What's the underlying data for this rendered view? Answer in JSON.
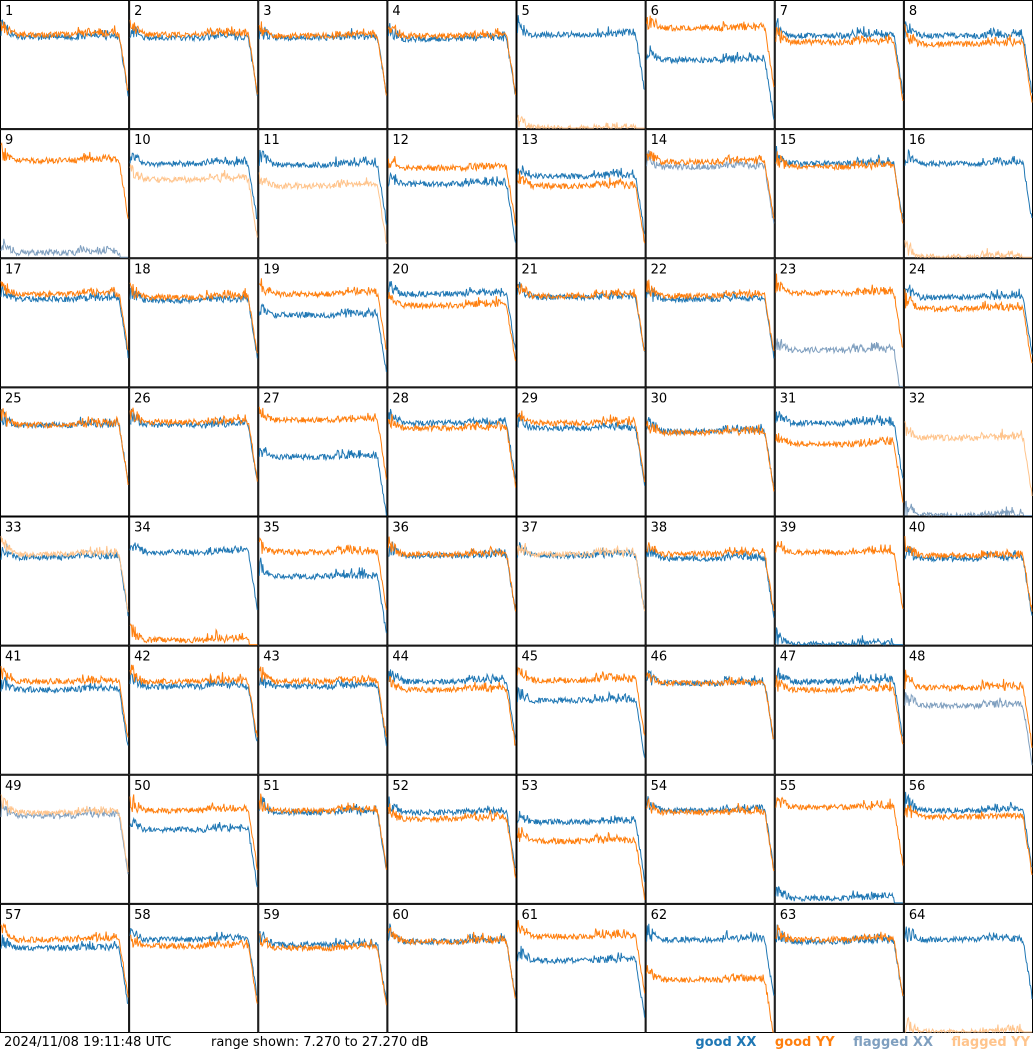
{
  "footer": {
    "timestamp": "2024/11/08 19:11:48 UTC",
    "range_text": "range shown: 7.270 to 27.270 dB"
  },
  "legend": [
    {
      "label": "good XX",
      "color": "#1f77b4"
    },
    {
      "label": "good YY",
      "color": "#ff7f0e"
    },
    {
      "label": "flagged XX",
      "color": "#7f9fbf"
    },
    {
      "label": "flagged YY",
      "color": "#ffc48c"
    }
  ],
  "chart_data": {
    "type": "line",
    "title": "",
    "xlabel": "",
    "ylabel": "",
    "ylim": [
      7.27,
      27.27
    ],
    "grid": false,
    "legend_position": "bottom-right",
    "panel_layout": {
      "rows": 8,
      "cols": 8
    },
    "colors": {
      "good_xx": "#1f77b4",
      "good_yy": "#ff7f0e",
      "flagged_xx": "#7f9fbf",
      "flagged_yy": "#ffc48c"
    },
    "series_names": [
      "good XX",
      "good YY",
      "flagged XX",
      "flagged YY"
    ],
    "panels": [
      {
        "label": "1",
        "xx": "good",
        "yy": "good",
        "xx_level": 21.6,
        "yy_level": 22.0
      },
      {
        "label": "2",
        "xx": "good",
        "yy": "good",
        "xx_level": 21.5,
        "yy_level": 22.0
      },
      {
        "label": "3",
        "xx": "good",
        "yy": "good",
        "xx_level": 21.5,
        "yy_level": 21.8
      },
      {
        "label": "4",
        "xx": "good",
        "yy": "good",
        "xx_level": 21.3,
        "yy_level": 21.8
      },
      {
        "label": "5",
        "xx": "good",
        "yy": "flagged",
        "xx_level": 22.0,
        "yy_level": 7.3
      },
      {
        "label": "6",
        "xx": "good",
        "yy": "good",
        "xx_level": 18.0,
        "yy_level": 23.0
      },
      {
        "label": "7",
        "xx": "good",
        "yy": "good",
        "xx_level": 21.8,
        "yy_level": 20.8
      },
      {
        "label": "8",
        "xx": "good",
        "yy": "good",
        "xx_level": 21.8,
        "yy_level": 20.5
      },
      {
        "label": "9",
        "xx": "flagged",
        "yy": "good",
        "xx_level": 8.0,
        "yy_level": 22.5
      },
      {
        "label": "10",
        "xx": "good",
        "yy": "flagged",
        "xx_level": 22.0,
        "yy_level": 19.5
      },
      {
        "label": "11",
        "xx": "good",
        "yy": "flagged",
        "xx_level": 21.8,
        "yy_level": 18.5
      },
      {
        "label": "12",
        "xx": "good",
        "yy": "good",
        "xx_level": 18.8,
        "yy_level": 21.3
      },
      {
        "label": "13",
        "xx": "good",
        "yy": "good",
        "xx_level": 20.0,
        "yy_level": 18.5
      },
      {
        "label": "14",
        "xx": "flagged",
        "yy": "good",
        "xx_level": 21.5,
        "yy_level": 22.3
      },
      {
        "label": "15",
        "xx": "good",
        "yy": "good",
        "xx_level": 22.0,
        "yy_level": 21.5
      },
      {
        "label": "16",
        "xx": "good",
        "yy": "flagged",
        "xx_level": 22.0,
        "yy_level": 7.3
      },
      {
        "label": "17",
        "xx": "good",
        "yy": "good",
        "xx_level": 21.0,
        "yy_level": 21.8
      },
      {
        "label": "18",
        "xx": "good",
        "yy": "good",
        "xx_level": 20.8,
        "yy_level": 21.3
      },
      {
        "label": "19",
        "xx": "good",
        "yy": "good",
        "xx_level": 18.5,
        "yy_level": 21.8
      },
      {
        "label": "20",
        "xx": "good",
        "yy": "good",
        "xx_level": 21.8,
        "yy_level": 20.0
      },
      {
        "label": "21",
        "xx": "good",
        "yy": "good",
        "xx_level": 21.3,
        "yy_level": 21.5
      },
      {
        "label": "22",
        "xx": "good",
        "yy": "good",
        "xx_level": 21.0,
        "yy_level": 21.5
      },
      {
        "label": "23",
        "xx": "flagged",
        "yy": "good",
        "xx_level": 13.0,
        "yy_level": 22.0
      },
      {
        "label": "24",
        "xx": "good",
        "yy": "good",
        "xx_level": 21.3,
        "yy_level": 19.5
      },
      {
        "label": "25",
        "xx": "good",
        "yy": "good",
        "xx_level": 21.5,
        "yy_level": 21.5
      },
      {
        "label": "26",
        "xx": "good",
        "yy": "good",
        "xx_level": 21.5,
        "yy_level": 22.0
      },
      {
        "label": "27",
        "xx": "good",
        "yy": "good",
        "xx_level": 16.5,
        "yy_level": 22.3
      },
      {
        "label": "28",
        "xx": "good",
        "yy": "good",
        "xx_level": 21.8,
        "yy_level": 21.0
      },
      {
        "label": "29",
        "xx": "good",
        "yy": "good",
        "xx_level": 21.0,
        "yy_level": 21.8
      },
      {
        "label": "30",
        "xx": "good",
        "yy": "good",
        "xx_level": 20.5,
        "yy_level": 20.3
      },
      {
        "label": "31",
        "xx": "good",
        "yy": "good",
        "xx_level": 21.8,
        "yy_level": 18.5
      },
      {
        "label": "32",
        "xx": "flagged",
        "yy": "flagged",
        "xx_level": 7.3,
        "yy_level": 19.5
      },
      {
        "label": "33",
        "xx": "good",
        "yy": "flagged",
        "xx_level": 21.0,
        "yy_level": 21.5
      },
      {
        "label": "34",
        "xx": "good",
        "yy": "good",
        "xx_level": 21.8,
        "yy_level": 8.0
      },
      {
        "label": "35",
        "xx": "good",
        "yy": "good",
        "xx_level": 18.0,
        "yy_level": 21.8
      },
      {
        "label": "36",
        "xx": "good",
        "yy": "good",
        "xx_level": 21.3,
        "yy_level": 21.5
      },
      {
        "label": "37",
        "xx": "good",
        "yy": "flagged",
        "xx_level": 21.3,
        "yy_level": 21.5
      },
      {
        "label": "38",
        "xx": "good",
        "yy": "good",
        "xx_level": 20.8,
        "yy_level": 21.5
      },
      {
        "label": "39",
        "xx": "good",
        "yy": "good",
        "xx_level": 7.3,
        "yy_level": 21.8
      },
      {
        "label": "40",
        "xx": "good",
        "yy": "good",
        "xx_level": 20.8,
        "yy_level": 21.3
      },
      {
        "label": "41",
        "xx": "good",
        "yy": "good",
        "xx_level": 20.5,
        "yy_level": 21.8
      },
      {
        "label": "42",
        "xx": "good",
        "yy": "good",
        "xx_level": 21.0,
        "yy_level": 21.8
      },
      {
        "label": "43",
        "xx": "good",
        "yy": "good",
        "xx_level": 21.0,
        "yy_level": 21.8
      },
      {
        "label": "44",
        "xx": "good",
        "yy": "good",
        "xx_level": 21.8,
        "yy_level": 20.5
      },
      {
        "label": "45",
        "xx": "good",
        "yy": "good",
        "xx_level": 18.8,
        "yy_level": 22.0
      },
      {
        "label": "46",
        "xx": "good",
        "yy": "good",
        "xx_level": 21.5,
        "yy_level": 21.5
      },
      {
        "label": "47",
        "xx": "good",
        "yy": "good",
        "xx_level": 21.8,
        "yy_level": 20.5
      },
      {
        "label": "48",
        "xx": "flagged",
        "yy": "good",
        "xx_level": 18.0,
        "yy_level": 20.8
      },
      {
        "label": "49",
        "xx": "flagged",
        "yy": "flagged",
        "xx_level": 21.0,
        "yy_level": 21.5
      },
      {
        "label": "50",
        "xx": "good",
        "yy": "good",
        "xx_level": 18.8,
        "yy_level": 21.8
      },
      {
        "label": "51",
        "xx": "good",
        "yy": "good",
        "xx_level": 21.5,
        "yy_level": 21.8
      },
      {
        "label": "52",
        "xx": "good",
        "yy": "good",
        "xx_level": 21.5,
        "yy_level": 20.5
      },
      {
        "label": "53",
        "xx": "good",
        "yy": "good",
        "xx_level": 20.0,
        "yy_level": 17.0
      },
      {
        "label": "54",
        "xx": "good",
        "yy": "good",
        "xx_level": 21.8,
        "yy_level": 21.5
      },
      {
        "label": "55",
        "xx": "good",
        "yy": "good",
        "xx_level": 8.0,
        "yy_level": 22.3
      },
      {
        "label": "56",
        "xx": "good",
        "yy": "good",
        "xx_level": 21.8,
        "yy_level": 20.8
      },
      {
        "label": "57",
        "xx": "good",
        "yy": "good",
        "xx_level": 20.5,
        "yy_level": 21.8
      },
      {
        "label": "58",
        "xx": "good",
        "yy": "good",
        "xx_level": 21.8,
        "yy_level": 20.8
      },
      {
        "label": "59",
        "xx": "good",
        "yy": "good",
        "xx_level": 21.0,
        "yy_level": 20.5
      },
      {
        "label": "60",
        "xx": "good",
        "yy": "good",
        "xx_level": 21.5,
        "yy_level": 21.5
      },
      {
        "label": "61",
        "xx": "good",
        "yy": "good",
        "xx_level": 18.5,
        "yy_level": 22.3
      },
      {
        "label": "62",
        "xx": "good",
        "yy": "good",
        "xx_level": 21.8,
        "yy_level": 15.5
      },
      {
        "label": "63",
        "xx": "good",
        "yy": "good",
        "xx_level": 21.5,
        "yy_level": 21.8
      },
      {
        "label": "64",
        "xx": "good",
        "yy": "flagged",
        "xx_level": 21.8,
        "yy_level": 7.3
      }
    ]
  }
}
